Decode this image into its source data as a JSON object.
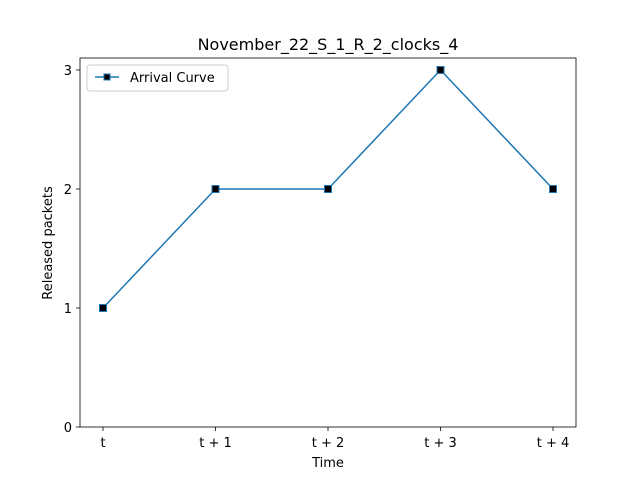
{
  "chart_data": {
    "type": "line",
    "title": "November_22_S_1_R_2_clocks_4",
    "xlabel": "Time",
    "ylabel": "Released packets",
    "categories": [
      "t",
      "t + 1",
      "t + 2",
      "t + 3",
      "t + 4"
    ],
    "yticks": [
      "0",
      "1",
      "2",
      "3"
    ],
    "ylim": [
      0,
      3
    ],
    "grid": false,
    "legend_position": "top-left",
    "series": [
      {
        "name": "Arrival Curve",
        "values": [
          1,
          2,
          2,
          3,
          2
        ],
        "line_color": "#1f77b4",
        "marker": "square",
        "marker_color": "#000000"
      }
    ]
  }
}
